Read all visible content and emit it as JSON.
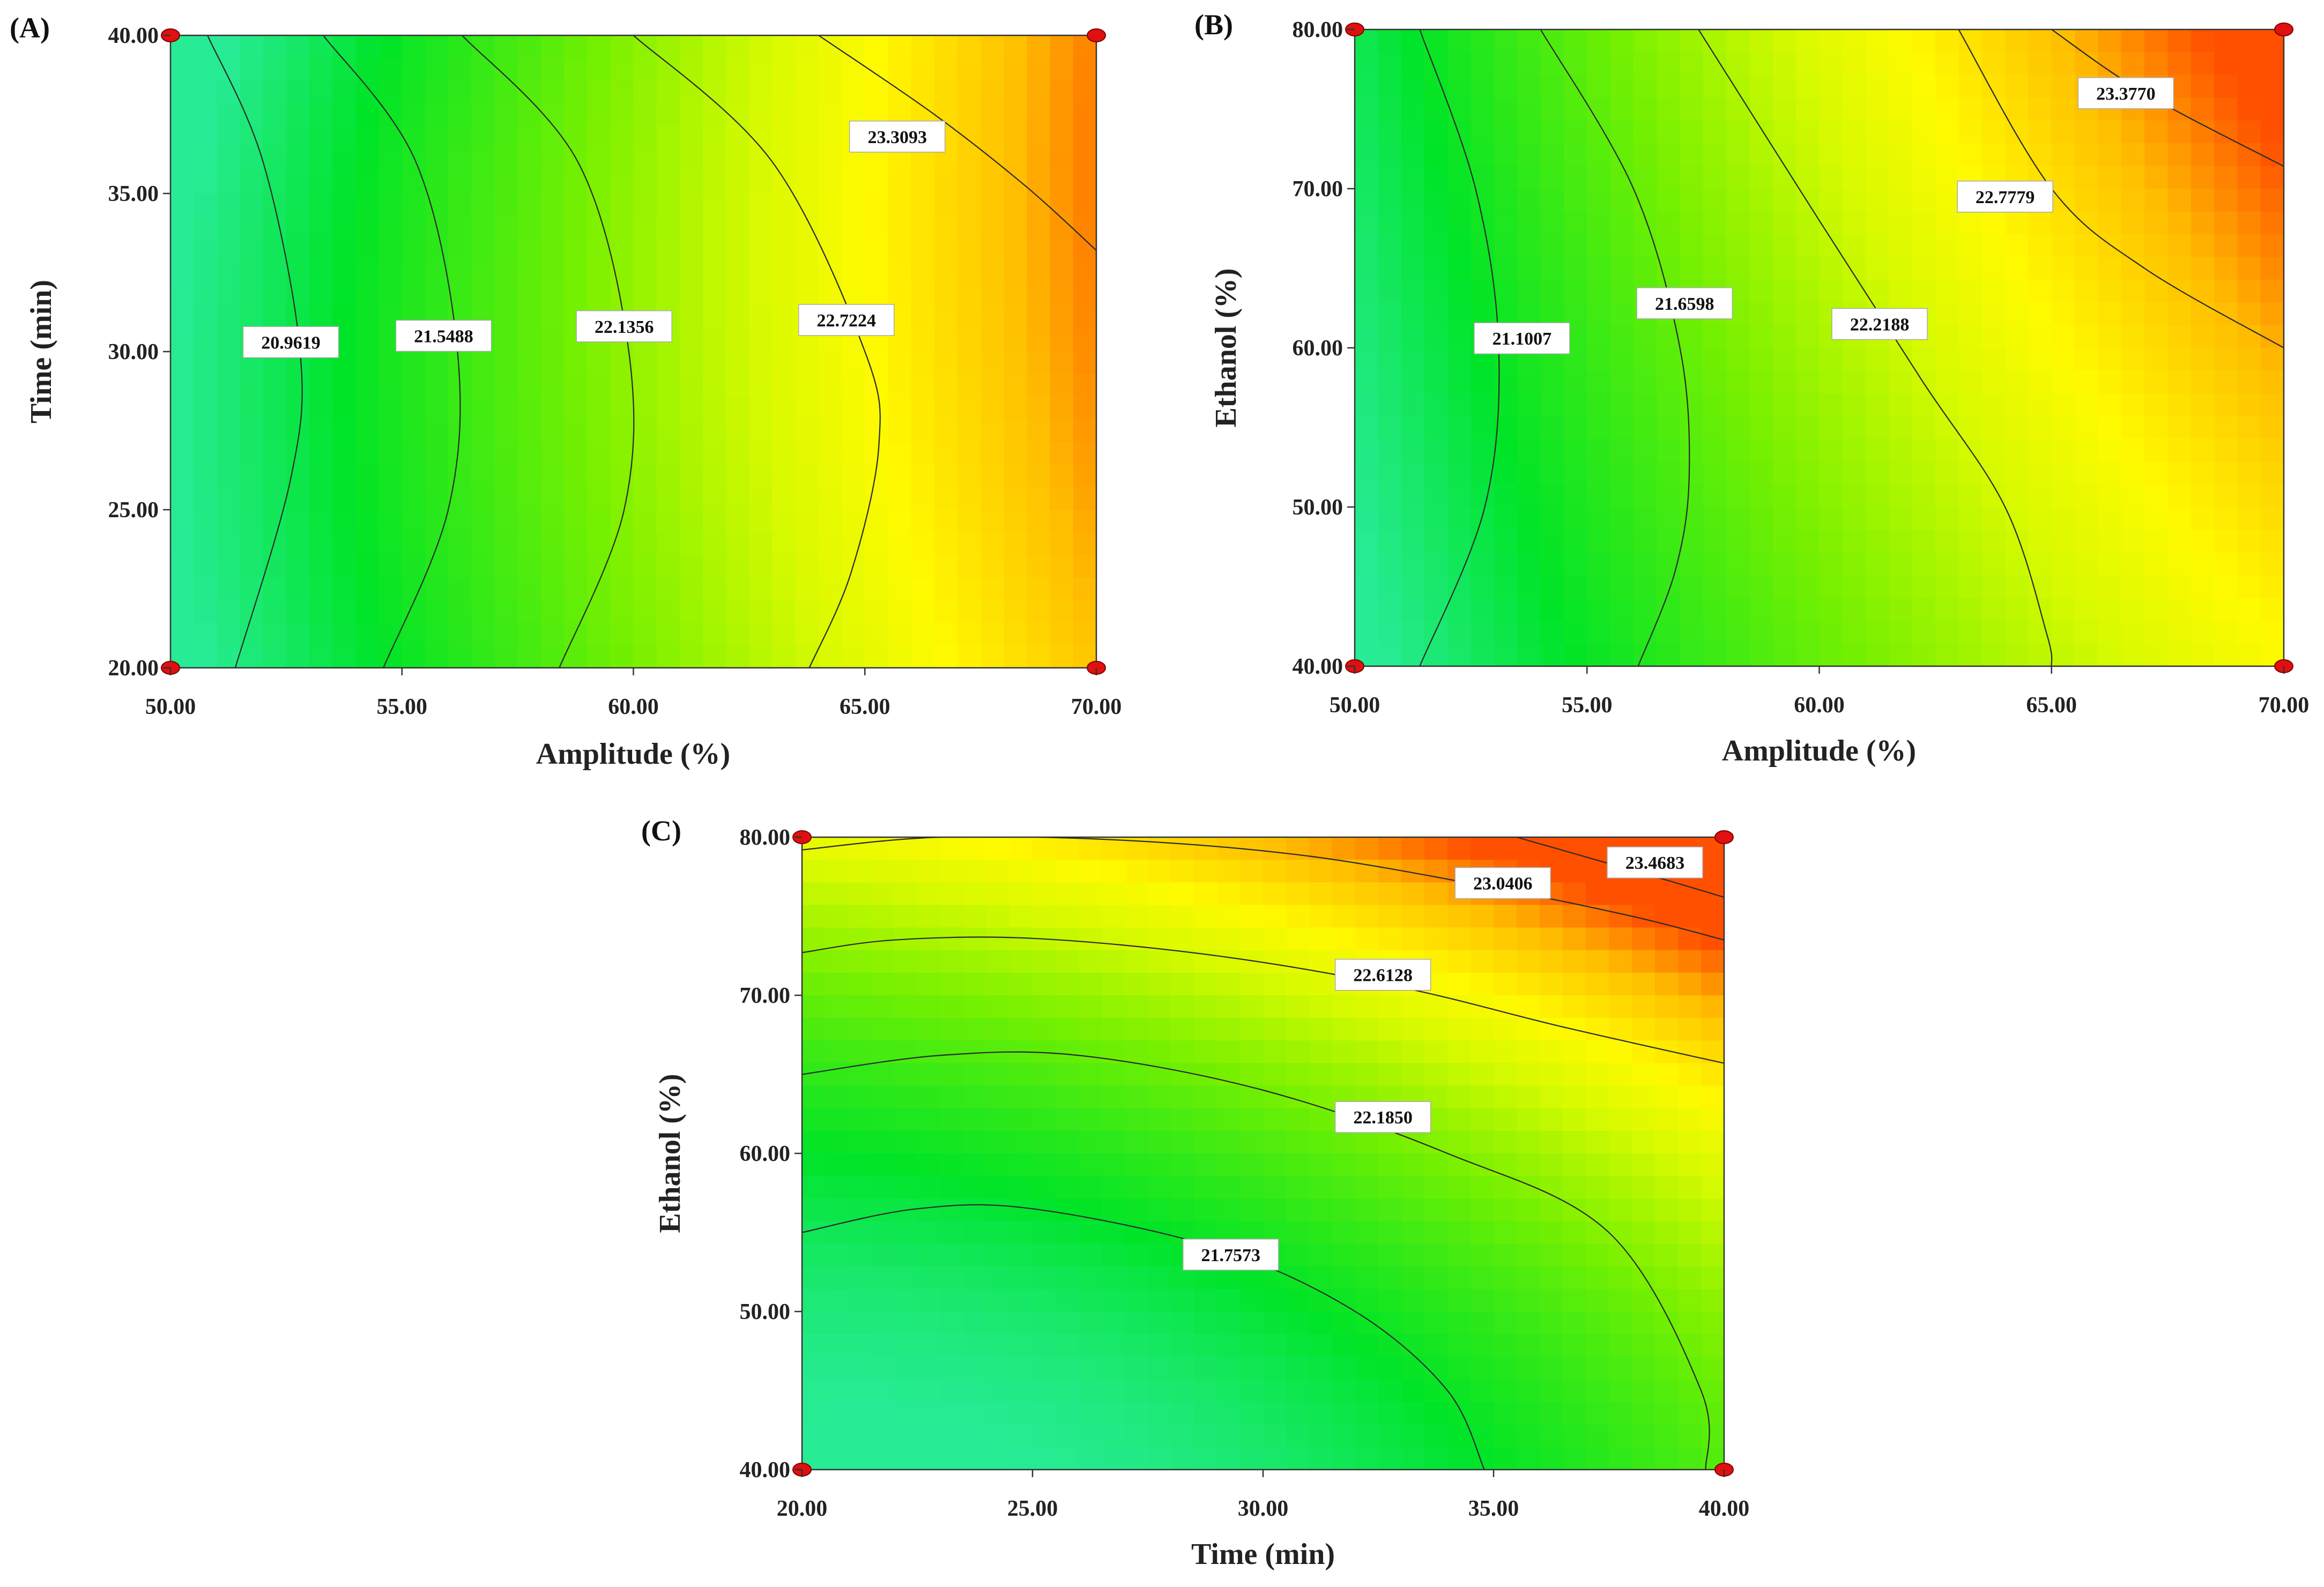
{
  "figure": "Response surface contour plots",
  "chart_data": [
    {
      "type": "contour",
      "panel": "(A)",
      "xlabel": "Amplitude (%)",
      "ylabel": "Time (min)",
      "xlim": [
        50,
        70
      ],
      "ylim": [
        20,
        40
      ],
      "xticks": [
        "50.00",
        "55.00",
        "60.00",
        "65.00",
        "70.00"
      ],
      "yticks": [
        "20.00",
        "25.00",
        "30.00",
        "35.00",
        "40.00"
      ],
      "xtick_values": [
        50,
        55,
        60,
        65,
        70
      ],
      "ytick_values": [
        20,
        25,
        30,
        35,
        40
      ],
      "design_points": [
        [
          50,
          20
        ],
        [
          50,
          40
        ],
        [
          70,
          20
        ],
        [
          70,
          40
        ]
      ],
      "color_range": [
        20.45,
        23.9
      ],
      "contours": [
        {
          "level": "20.9619",
          "label_at": [
            52.6,
            30.3
          ],
          "points": [
            [
              50.8,
              40
            ],
            [
              52.0,
              36
            ],
            [
              52.8,
              30
            ],
            [
              52.6,
              26
            ],
            [
              51.4,
              20
            ]
          ]
        },
        {
          "level": "21.5488",
          "label_at": [
            55.9,
            30.5
          ],
          "points": [
            [
              53.3,
              40
            ],
            [
              55.3,
              36
            ],
            [
              56.2,
              30
            ],
            [
              56.0,
              25
            ],
            [
              54.6,
              20
            ]
          ]
        },
        {
          "level": "22.1356",
          "label_at": [
            59.8,
            30.8
          ],
          "points": [
            [
              56.3,
              40
            ],
            [
              58.8,
              36
            ],
            [
              59.9,
              30
            ],
            [
              59.8,
              25
            ],
            [
              58.4,
              20
            ]
          ]
        },
        {
          "level": "22.7224",
          "label_at": [
            64.6,
            31.0
          ],
          "points": [
            [
              60.0,
              40
            ],
            [
              63.0,
              36
            ],
            [
              65.0,
              30
            ],
            [
              65.3,
              27
            ],
            [
              64.7,
              23
            ],
            [
              63.8,
              20
            ]
          ]
        },
        {
          "level": "23.3093",
          "label_at": [
            65.7,
            36.8
          ],
          "points": [
            [
              64.0,
              40
            ],
            [
              66.5,
              37.5
            ],
            [
              68.5,
              35.2
            ],
            [
              70,
              33.2
            ]
          ]
        }
      ]
    },
    {
      "type": "contour",
      "panel": "(B)",
      "xlabel": "Amplitude (%)",
      "ylabel": "Ethanol (%)",
      "xlim": [
        50,
        70
      ],
      "ylim": [
        40,
        80
      ],
      "xticks": [
        "50.00",
        "55.00",
        "60.00",
        "65.00",
        "70.00"
      ],
      "yticks": [
        "40.00",
        "50.00",
        "60.00",
        "70.00",
        "80.00"
      ],
      "xtick_values": [
        50,
        55,
        60,
        65,
        70
      ],
      "ytick_values": [
        40,
        50,
        60,
        70,
        80
      ],
      "design_points": [
        [
          50,
          40
        ],
        [
          50,
          80
        ],
        [
          70,
          40
        ],
        [
          70,
          80
        ]
      ],
      "color_range": [
        20.55,
        23.9
      ],
      "contours": [
        {
          "level": "21.1007",
          "label_at": [
            53.6,
            60.6
          ],
          "points": [
            [
              51.4,
              80
            ],
            [
              52.6,
              70
            ],
            [
              53.1,
              60
            ],
            [
              52.8,
              50
            ],
            [
              51.4,
              40
            ]
          ]
        },
        {
          "level": "21.6598",
          "label_at": [
            57.1,
            62.8
          ],
          "points": [
            [
              54.0,
              80
            ],
            [
              56.0,
              70
            ],
            [
              57.0,
              60
            ],
            [
              57.2,
              52
            ],
            [
              56.9,
              46
            ],
            [
              56.1,
              40
            ]
          ]
        },
        {
          "level": "22.2188",
          "label_at": [
            61.3,
            61.5
          ],
          "points": [
            [
              57.4,
              80
            ],
            [
              60.0,
              68
            ],
            [
              62.2,
              58
            ],
            [
              64.0,
              50
            ],
            [
              64.9,
              42
            ],
            [
              65.0,
              40
            ]
          ]
        },
        {
          "level": "22.7779",
          "label_at": [
            64.0,
            69.5
          ],
          "points": [
            [
              63.0,
              80
            ],
            [
              65.0,
              70
            ],
            [
              67.0,
              65
            ],
            [
              70,
              60
            ]
          ]
        },
        {
          "level": "23.3770",
          "label_at": [
            66.6,
            76.0
          ],
          "points": [
            [
              65.0,
              80
            ],
            [
              67.0,
              76
            ],
            [
              70,
              71.4
            ]
          ]
        }
      ]
    },
    {
      "type": "contour",
      "panel": "(C)",
      "xlabel": "Time (min)",
      "ylabel": "Ethanol (%)",
      "xlim": [
        20,
        40
      ],
      "ylim": [
        40,
        80
      ],
      "xticks": [
        "20.00",
        "25.00",
        "30.00",
        "35.00",
        "40.00"
      ],
      "yticks": [
        "40.00",
        "50.00",
        "60.00",
        "70.00",
        "80.00"
      ],
      "xtick_values": [
        20,
        25,
        30,
        35,
        40
      ],
      "ytick_values": [
        40,
        50,
        60,
        70,
        80
      ],
      "design_points": [
        [
          20,
          40
        ],
        [
          20,
          80
        ],
        [
          40,
          40
        ],
        [
          40,
          80
        ]
      ],
      "color_range": [
        21.0,
        23.95
      ],
      "contours": [
        {
          "level": "21.7573",
          "label_at": [
            29.3,
            53.6
          ],
          "points": [
            [
              20,
              55
            ],
            [
              22.5,
              56.5
            ],
            [
              25,
              56.5
            ],
            [
              29,
              54
            ],
            [
              32,
              50
            ],
            [
              34,
              45
            ],
            [
              34.8,
              40
            ]
          ]
        },
        {
          "level": "22.1850",
          "label_at": [
            32.6,
            62.3
          ],
          "points": [
            [
              20,
              65
            ],
            [
              23,
              66.2
            ],
            [
              26,
              66.2
            ],
            [
              30,
              64
            ],
            [
              34,
              60
            ],
            [
              37.5,
              55
            ],
            [
              39.5,
              45
            ],
            [
              39.6,
              40
            ]
          ]
        },
        {
          "level": "22.6128",
          "label_at": [
            32.6,
            71.3
          ],
          "points": [
            [
              20,
              72.7
            ],
            [
              22,
              73.5
            ],
            [
              25,
              73.6
            ],
            [
              29,
              72.5
            ],
            [
              33,
              70.5
            ],
            [
              36.5,
              68
            ],
            [
              40,
              65.7
            ]
          ]
        },
        {
          "level": "23.0406",
          "label_at": [
            35.2,
            77.1
          ],
          "points": [
            [
              20,
              79.2
            ],
            [
              23,
              80
            ],
            [
              27,
              79.8
            ],
            [
              31,
              78.8
            ],
            [
              35,
              76.8
            ],
            [
              38,
              75
            ],
            [
              40,
              73.5
            ]
          ]
        },
        {
          "level": "23.4683",
          "label_at": [
            38.5,
            78.4
          ],
          "points": [
            [
              35.5,
              80
            ],
            [
              38.5,
              77.5
            ],
            [
              40,
              76.2
            ]
          ]
        }
      ]
    }
  ]
}
